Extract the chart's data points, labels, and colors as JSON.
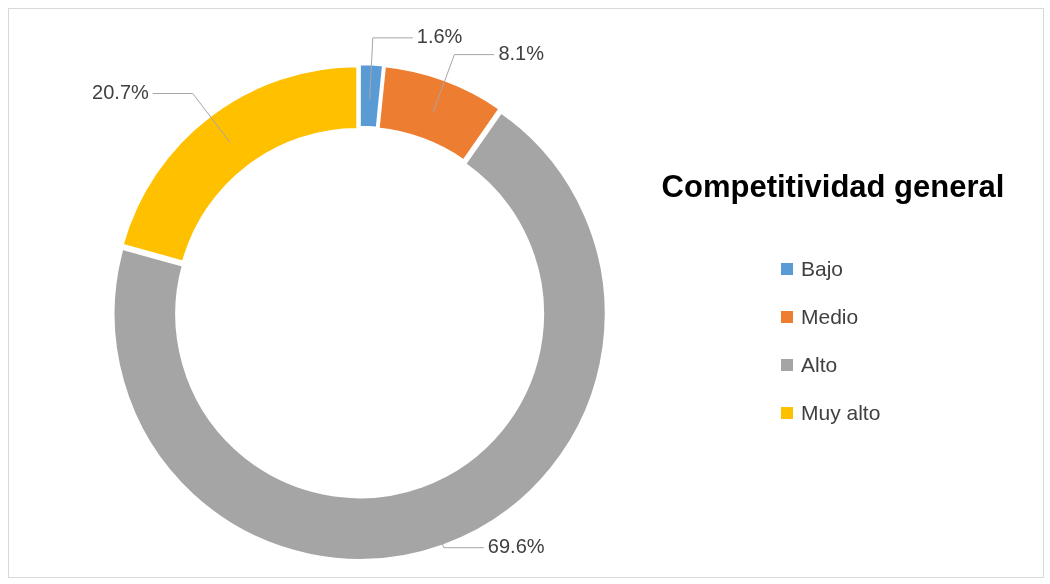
{
  "chart_data": {
    "type": "donut",
    "title": "Competitividad general",
    "categories": [
      "Bajo",
      "Medio",
      "Alto",
      "Muy alto"
    ],
    "values": [
      1.6,
      8.1,
      69.6,
      20.7
    ],
    "colors": [
      "#5b9bd5",
      "#ed7d31",
      "#a5a5a5",
      "#ffc000"
    ],
    "value_labels": [
      "1.6%",
      "8.1%",
      "69.6%",
      "20.7%"
    ],
    "legend": "right"
  }
}
